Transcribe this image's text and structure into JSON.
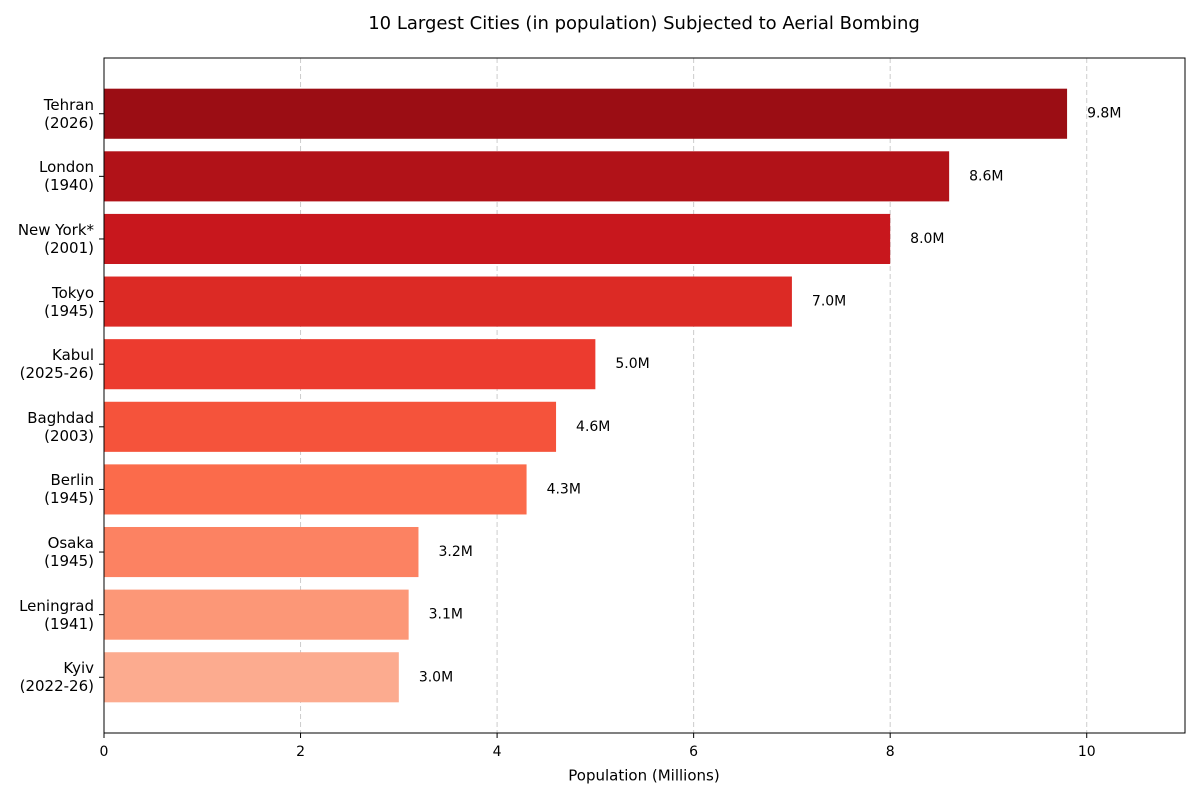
{
  "chart_data": {
    "type": "barh",
    "title": "10 Largest Cities (in population) Subjected to Aerial Bombing",
    "xlabel": "Population (Millions)",
    "categories": [
      "Tehran\n(2026)",
      "London\n(1940)",
      "New York*\n(2001)",
      "Tokyo\n(1945)",
      "Kabul\n(2025-26)",
      "Baghdad\n(2003)",
      "Berlin\n(1945)",
      "Osaka\n(1945)",
      "Leningrad\n(1941)",
      "Kyiv\n(2022-26)"
    ],
    "values": [
      9.8,
      8.6,
      8.0,
      7.0,
      5.0,
      4.6,
      4.3,
      3.2,
      3.1,
      3.0
    ],
    "value_labels": [
      "9.8M",
      "8.6M",
      "8.0M",
      "7.0M",
      "5.0M",
      "4.6M",
      "4.3M",
      "3.2M",
      "3.1M",
      "3.0M"
    ],
    "colors": [
      "#9b0d14",
      "#b11218",
      "#c8171d",
      "#dc2a25",
      "#ec3b2f",
      "#f5533b",
      "#fb6b4b",
      "#fc8262",
      "#fc9777",
      "#fcab8f"
    ],
    "xlim": [
      0,
      11
    ],
    "xticks": [
      0,
      2,
      4,
      6,
      8,
      10
    ],
    "grid": true
  }
}
